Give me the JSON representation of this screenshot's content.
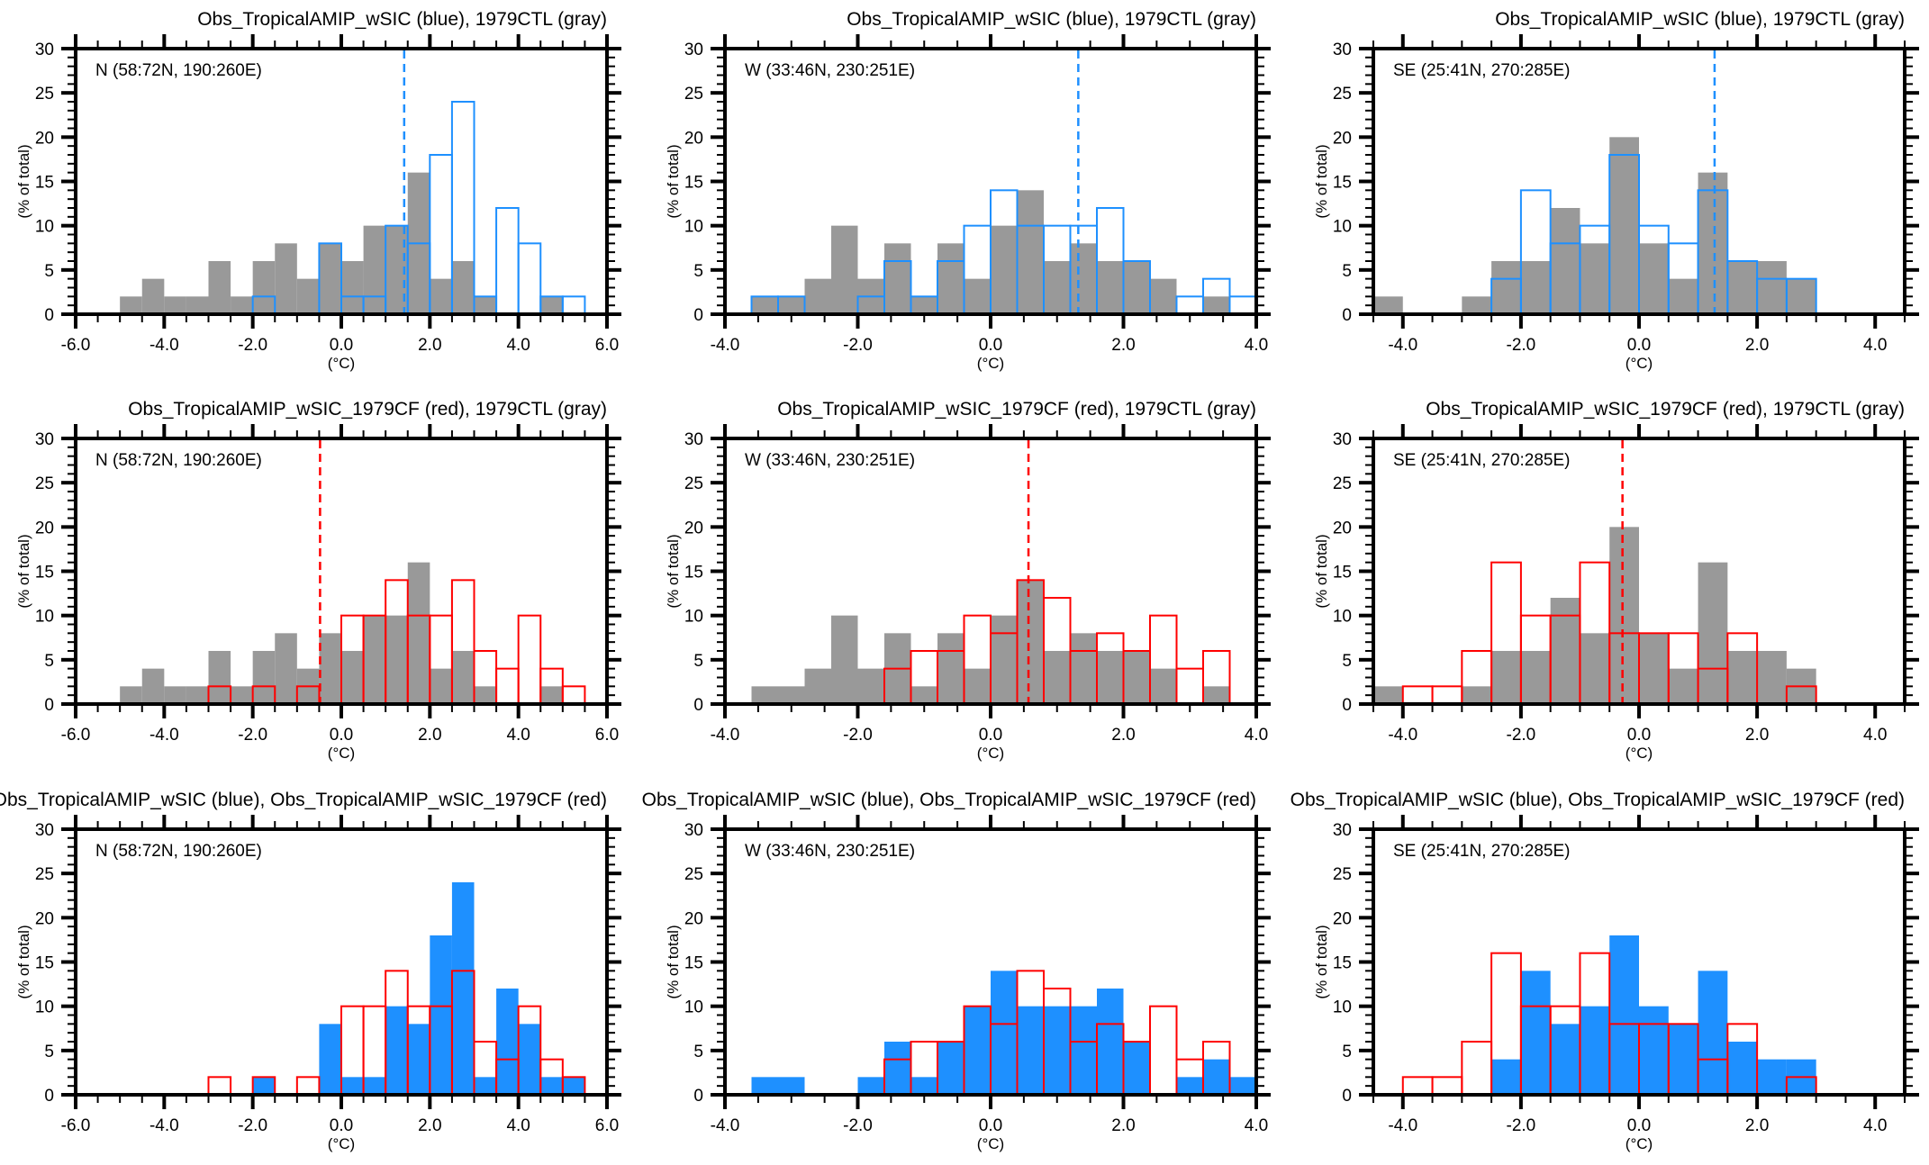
{
  "colors": {
    "gray_fill": "#999999",
    "blue": "#1e90ff",
    "red": "#ff0000",
    "frame": "#000000"
  },
  "chart_data": [
    {
      "type": "bar",
      "title": "Obs_TropicalAMIP_wSIC (blue), 1979CTL (gray)",
      "region": "N (58:72N, 190:260E)",
      "xlabel": "(°C)",
      "ylabel": "(% of total)",
      "xlim": [
        -6,
        6
      ],
      "ylim": [
        0,
        30
      ],
      "xticks": [
        -6,
        -4,
        -2,
        0,
        2,
        4,
        6
      ],
      "xtick_labels": [
        "-6.0",
        "-4.0",
        "-2.0",
        "0.0",
        "2.0",
        "4.0",
        "6.0"
      ],
      "xminor": 0.5,
      "yticks": [
        0,
        5,
        10,
        15,
        20,
        25,
        30
      ],
      "ytick_labels": [
        "0",
        "5",
        "10",
        "15",
        "20",
        "25",
        "30"
      ],
      "bin_start": -5.0,
      "bin_width": 0.5,
      "series": [
        {
          "name": "1979CTL",
          "style": "filled",
          "color": "gray",
          "values": [
            2,
            4,
            2,
            2,
            6,
            2,
            6,
            8,
            4,
            8,
            6,
            10,
            10,
            16,
            4,
            6,
            2,
            0,
            0,
            2,
            0
          ]
        },
        {
          "name": "Obs_TropicalAMIP_wSIC",
          "style": "outline",
          "color": "blue",
          "values": [
            0,
            0,
            0,
            0,
            0,
            0,
            2,
            0,
            0,
            8,
            2,
            2,
            10,
            8,
            18,
            24,
            2,
            12,
            8,
            2,
            2
          ]
        }
      ],
      "mean_line": {
        "x": 1.42,
        "color": "blue"
      }
    },
    {
      "type": "bar",
      "title": "Obs_TropicalAMIP_wSIC (blue), 1979CTL (gray)",
      "region": "W (33:46N, 230:251E)",
      "xlabel": "(°C)",
      "ylabel": "(% of total)",
      "xlim": [
        -4,
        4
      ],
      "ylim": [
        0,
        30
      ],
      "xticks": [
        -4,
        -2,
        0,
        2,
        4
      ],
      "xtick_labels": [
        "-4.0",
        "-2.0",
        "0.0",
        "2.0",
        "4.0"
      ],
      "xminor": 0.5,
      "yticks": [
        0,
        5,
        10,
        15,
        20,
        25,
        30
      ],
      "ytick_labels": [
        "0",
        "5",
        "10",
        "15",
        "20",
        "25",
        "30"
      ],
      "bin_start": -3.6,
      "bin_width": 0.4,
      "series": [
        {
          "name": "1979CTL",
          "style": "filled",
          "color": "gray",
          "values": [
            2,
            2,
            4,
            10,
            4,
            8,
            2,
            8,
            4,
            10,
            14,
            6,
            8,
            6,
            6,
            4,
            0,
            2,
            0
          ]
        },
        {
          "name": "Obs_TropicalAMIP_wSIC",
          "style": "outline",
          "color": "blue",
          "values": [
            2,
            2,
            0,
            0,
            2,
            6,
            2,
            6,
            10,
            14,
            10,
            10,
            10,
            12,
            6,
            0,
            2,
            4,
            2
          ]
        }
      ],
      "mean_line": {
        "x": 1.32,
        "color": "blue"
      }
    },
    {
      "type": "bar",
      "title": "Obs_TropicalAMIP_wSIC (blue), 1979CTL (gray)",
      "region": "SE (25:41N, 270:285E)",
      "xlabel": "(°C)",
      "ylabel": "(% of total)",
      "xlim": [
        -4.5,
        4.5
      ],
      "ylim": [
        0,
        30
      ],
      "xticks": [
        -4,
        -2,
        0,
        2,
        4
      ],
      "xtick_labels": [
        "-4.0",
        "-2.0",
        "0.0",
        "2.0",
        "4.0"
      ],
      "xminor": 0.5,
      "yticks": [
        0,
        5,
        10,
        15,
        20,
        25,
        30
      ],
      "ytick_labels": [
        "0",
        "5",
        "10",
        "15",
        "20",
        "25",
        "30"
      ],
      "bin_start": -4.5,
      "bin_width": 0.5,
      "series": [
        {
          "name": "1979CTL",
          "style": "filled",
          "color": "gray",
          "values": [
            2,
            0,
            0,
            2,
            6,
            6,
            12,
            8,
            20,
            8,
            4,
            16,
            6,
            6,
            4
          ]
        },
        {
          "name": "Obs_TropicalAMIP_wSIC",
          "style": "outline",
          "color": "blue",
          "values": [
            0,
            0,
            0,
            0,
            4,
            14,
            8,
            10,
            18,
            10,
            8,
            14,
            6,
            4,
            4
          ]
        }
      ],
      "mean_line": {
        "x": 1.28,
        "color": "blue"
      }
    },
    {
      "type": "bar",
      "title": "Obs_TropicalAMIP_wSIC_1979CF (red), 1979CTL (gray)",
      "region": "N (58:72N, 190:260E)",
      "xlabel": "(°C)",
      "ylabel": "(% of total)",
      "xlim": [
        -6,
        6
      ],
      "ylim": [
        0,
        30
      ],
      "xticks": [
        -6,
        -4,
        -2,
        0,
        2,
        4,
        6
      ],
      "xtick_labels": [
        "-6.0",
        "-4.0",
        "-2.0",
        "0.0",
        "2.0",
        "4.0",
        "6.0"
      ],
      "xminor": 0.5,
      "yticks": [
        0,
        5,
        10,
        15,
        20,
        25,
        30
      ],
      "ytick_labels": [
        "0",
        "5",
        "10",
        "15",
        "20",
        "25",
        "30"
      ],
      "bin_start": -5.0,
      "bin_width": 0.5,
      "series": [
        {
          "name": "1979CTL",
          "style": "filled",
          "color": "gray",
          "values": [
            2,
            4,
            2,
            2,
            6,
            2,
            6,
            8,
            4,
            8,
            6,
            10,
            10,
            16,
            4,
            6,
            2,
            0,
            0,
            2,
            0
          ]
        },
        {
          "name": "Obs_TropicalAMIP_wSIC_1979CF",
          "style": "outline",
          "color": "red",
          "values": [
            0,
            0,
            0,
            0,
            2,
            0,
            2,
            0,
            2,
            0,
            10,
            10,
            14,
            10,
            10,
            14,
            6,
            4,
            10,
            4,
            2
          ]
        }
      ],
      "mean_line": {
        "x": -0.48,
        "color": "red"
      }
    },
    {
      "type": "bar",
      "title": "Obs_TropicalAMIP_wSIC_1979CF (red), 1979CTL (gray)",
      "region": "W (33:46N, 230:251E)",
      "xlabel": "(°C)",
      "ylabel": "(% of total)",
      "xlim": [
        -4,
        4
      ],
      "ylim": [
        0,
        30
      ],
      "xticks": [
        -4,
        -2,
        0,
        2,
        4
      ],
      "xtick_labels": [
        "-4.0",
        "-2.0",
        "0.0",
        "2.0",
        "4.0"
      ],
      "xminor": 0.5,
      "yticks": [
        0,
        5,
        10,
        15,
        20,
        25,
        30
      ],
      "ytick_labels": [
        "0",
        "5",
        "10",
        "15",
        "20",
        "25",
        "30"
      ],
      "bin_start": -3.6,
      "bin_width": 0.4,
      "series": [
        {
          "name": "1979CTL",
          "style": "filled",
          "color": "gray",
          "values": [
            2,
            2,
            4,
            10,
            4,
            8,
            2,
            8,
            4,
            10,
            14,
            6,
            8,
            6,
            6,
            4,
            0,
            2,
            0
          ]
        },
        {
          "name": "Obs_TropicalAMIP_wSIC_1979CF",
          "style": "outline",
          "color": "red",
          "values": [
            0,
            0,
            0,
            0,
            0,
            4,
            6,
            6,
            10,
            8,
            14,
            12,
            6,
            8,
            6,
            10,
            4,
            6,
            0
          ]
        }
      ],
      "mean_line": {
        "x": 0.57,
        "color": "red"
      }
    },
    {
      "type": "bar",
      "title": "Obs_TropicalAMIP_wSIC_1979CF (red), 1979CTL (gray)",
      "region": "SE (25:41N, 270:285E)",
      "xlabel": "(°C)",
      "ylabel": "(% of total)",
      "xlim": [
        -4.5,
        4.5
      ],
      "ylim": [
        0,
        30
      ],
      "xticks": [
        -4,
        -2,
        0,
        2,
        4
      ],
      "xtick_labels": [
        "-4.0",
        "-2.0",
        "0.0",
        "2.0",
        "4.0"
      ],
      "xminor": 0.5,
      "yticks": [
        0,
        5,
        10,
        15,
        20,
        25,
        30
      ],
      "ytick_labels": [
        "0",
        "5",
        "10",
        "15",
        "20",
        "25",
        "30"
      ],
      "bin_start": -4.5,
      "bin_width": 0.5,
      "series": [
        {
          "name": "1979CTL",
          "style": "filled",
          "color": "gray",
          "values": [
            2,
            0,
            0,
            2,
            6,
            6,
            12,
            8,
            20,
            8,
            4,
            16,
            6,
            6,
            4
          ]
        },
        {
          "name": "Obs_TropicalAMIP_wSIC_1979CF",
          "style": "outline",
          "color": "red",
          "values": [
            0,
            2,
            2,
            6,
            16,
            10,
            10,
            16,
            8,
            8,
            8,
            4,
            8,
            0,
            2
          ]
        }
      ],
      "mean_line": {
        "x": -0.28,
        "color": "red"
      }
    },
    {
      "type": "bar",
      "title": "Obs_TropicalAMIP_wSIC (blue), Obs_TropicalAMIP_wSIC_1979CF (red)",
      "region": "N (58:72N, 190:260E)",
      "xlabel": "(°C)",
      "ylabel": "(% of total)",
      "xlim": [
        -6,
        6
      ],
      "ylim": [
        0,
        30
      ],
      "xticks": [
        -6,
        -4,
        -2,
        0,
        2,
        4,
        6
      ],
      "xtick_labels": [
        "-6.0",
        "-4.0",
        "-2.0",
        "0.0",
        "2.0",
        "4.0",
        "6.0"
      ],
      "xminor": 0.5,
      "yticks": [
        0,
        5,
        10,
        15,
        20,
        25,
        30
      ],
      "ytick_labels": [
        "0",
        "5",
        "10",
        "15",
        "20",
        "25",
        "30"
      ],
      "bin_start": -5.0,
      "bin_width": 0.5,
      "series": [
        {
          "name": "Obs_TropicalAMIP_wSIC",
          "style": "filled",
          "color": "blue",
          "values": [
            0,
            0,
            0,
            0,
            0,
            0,
            2,
            0,
            0,
            8,
            2,
            2,
            10,
            8,
            18,
            24,
            2,
            12,
            8,
            2,
            2
          ]
        },
        {
          "name": "Obs_TropicalAMIP_wSIC_1979CF",
          "style": "outline",
          "color": "red",
          "values": [
            0,
            0,
            0,
            0,
            2,
            0,
            2,
            0,
            2,
            0,
            10,
            10,
            14,
            10,
            10,
            14,
            6,
            4,
            10,
            4,
            2
          ]
        }
      ]
    },
    {
      "type": "bar",
      "title": "Obs_TropicalAMIP_wSIC (blue), Obs_TropicalAMIP_wSIC_1979CF (red)",
      "region": "W (33:46N, 230:251E)",
      "xlabel": "(°C)",
      "ylabel": "(% of total)",
      "xlim": [
        -4,
        4
      ],
      "ylim": [
        0,
        30
      ],
      "xticks": [
        -4,
        -2,
        0,
        2,
        4
      ],
      "xtick_labels": [
        "-4.0",
        "-2.0",
        "0.0",
        "2.0",
        "4.0"
      ],
      "xminor": 0.5,
      "yticks": [
        0,
        5,
        10,
        15,
        20,
        25,
        30
      ],
      "ytick_labels": [
        "0",
        "5",
        "10",
        "15",
        "20",
        "25",
        "30"
      ],
      "bin_start": -3.6,
      "bin_width": 0.4,
      "series": [
        {
          "name": "Obs_TropicalAMIP_wSIC",
          "style": "filled",
          "color": "blue",
          "values": [
            2,
            2,
            0,
            0,
            2,
            6,
            2,
            6,
            10,
            14,
            10,
            10,
            10,
            12,
            6,
            0,
            2,
            4,
            2
          ]
        },
        {
          "name": "Obs_TropicalAMIP_wSIC_1979CF",
          "style": "outline",
          "color": "red",
          "values": [
            0,
            0,
            0,
            0,
            0,
            4,
            6,
            6,
            10,
            8,
            14,
            12,
            6,
            8,
            6,
            10,
            4,
            6,
            0
          ]
        }
      ]
    },
    {
      "type": "bar",
      "title": "Obs_TropicalAMIP_wSIC (blue), Obs_TropicalAMIP_wSIC_1979CF (red)",
      "region": "SE (25:41N, 270:285E)",
      "xlabel": "(°C)",
      "ylabel": "(% of total)",
      "xlim": [
        -4.5,
        4.5
      ],
      "ylim": [
        0,
        30
      ],
      "xticks": [
        -4,
        -2,
        0,
        2,
        4
      ],
      "xtick_labels": [
        "-4.0",
        "-2.0",
        "0.0",
        "2.0",
        "4.0"
      ],
      "xminor": 0.5,
      "yticks": [
        0,
        5,
        10,
        15,
        20,
        25,
        30
      ],
      "ytick_labels": [
        "0",
        "5",
        "10",
        "15",
        "20",
        "25",
        "30"
      ],
      "bin_start": -4.5,
      "bin_width": 0.5,
      "series": [
        {
          "name": "Obs_TropicalAMIP_wSIC",
          "style": "filled",
          "color": "blue",
          "values": [
            0,
            0,
            0,
            0,
            4,
            14,
            8,
            10,
            18,
            10,
            8,
            14,
            6,
            4,
            4
          ]
        },
        {
          "name": "Obs_TropicalAMIP_wSIC_1979CF",
          "style": "outline",
          "color": "red",
          "values": [
            0,
            2,
            2,
            6,
            16,
            10,
            10,
            16,
            8,
            8,
            8,
            4,
            8,
            0,
            2
          ]
        }
      ]
    }
  ]
}
